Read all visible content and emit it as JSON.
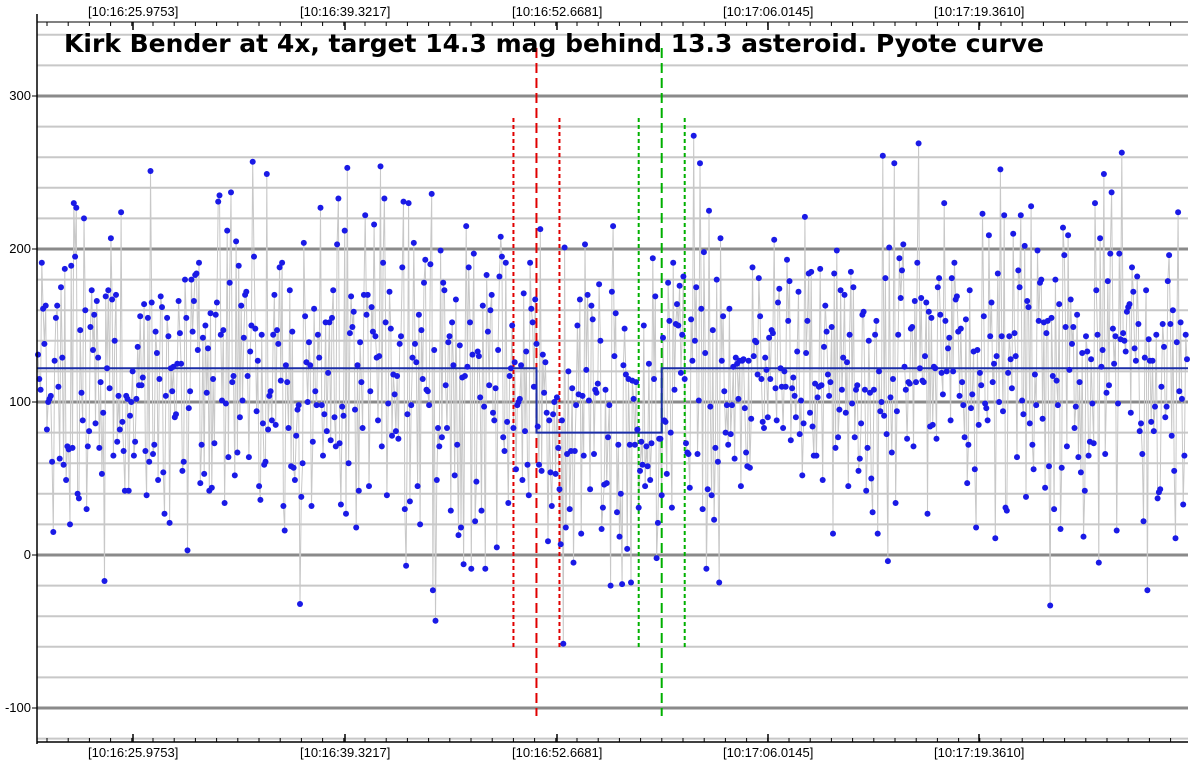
{
  "chart_data": {
    "type": "line",
    "title": "Kirk Bender at 4x, target 14.3 mag behind 13.3 asteroid. Pyote curve",
    "xlabel": "",
    "ylabel": "",
    "x_tick_labels": [
      "[10:16:25.9753]",
      "[10:16:39.3217]",
      "[10:16:52.6681]",
      "[10:17:06.0145]",
      "[10:17:19.3610]"
    ],
    "y_ticks": [
      -100,
      0,
      100,
      200,
      300
    ],
    "ylim": [
      -125,
      345
    ],
    "n_points": 900,
    "grid": true,
    "marker_color": "#1a1ae6",
    "connector_color": "#c8c8c8",
    "model_color": "#1c2fa8",
    "model_fit": {
      "baseline": 122,
      "event_level": 80,
      "drop_index": 390,
      "rise_index": 488
    },
    "markers": [
      {
        "name": "D",
        "index": 390,
        "color": "#e00000",
        "style": "dashed"
      },
      {
        "name": "D-error-low",
        "index": 372,
        "color": "#e00000",
        "style": "dotted"
      },
      {
        "name": "D-error-high",
        "index": 408,
        "color": "#e00000",
        "style": "dotted"
      },
      {
        "name": "R",
        "index": 488,
        "color": "#00b000",
        "style": "dashed"
      },
      {
        "name": "R-error-low",
        "index": 470,
        "color": "#00b000",
        "style": "dotted"
      },
      {
        "name": "R-error-high",
        "index": 506,
        "color": "#00b000",
        "style": "dotted"
      }
    ]
  }
}
